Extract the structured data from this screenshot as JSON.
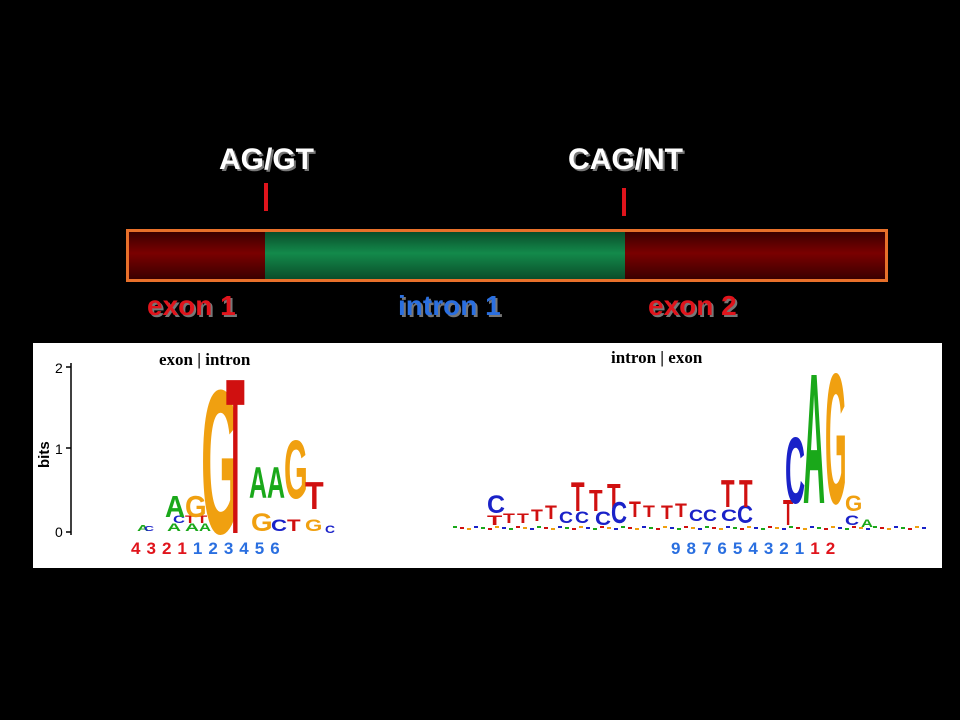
{
  "top_labels": {
    "donor": "AG/GT",
    "acceptor": "CAG/NT"
  },
  "regions": {
    "exon1": "exon 1",
    "intron1": "intron 1",
    "exon2": "exon 2"
  },
  "logo": {
    "left_title": "exon | intron",
    "right_title": "intron | exon",
    "y_axis_label": "bits",
    "y_ticks": [
      "2",
      "1",
      "0"
    ],
    "left_positions": [
      {
        "n": "4",
        "side": "exon"
      },
      {
        "n": "3",
        "side": "exon"
      },
      {
        "n": "2",
        "side": "exon"
      },
      {
        "n": "1",
        "side": "exon"
      },
      {
        "n": "1",
        "side": "intron"
      },
      {
        "n": "2",
        "side": "intron"
      },
      {
        "n": "3",
        "side": "intron"
      },
      {
        "n": "4",
        "side": "intron"
      },
      {
        "n": "5",
        "side": "intron"
      },
      {
        "n": "6",
        "side": "intron"
      }
    ],
    "right_positions": [
      {
        "n": "9",
        "side": "intron"
      },
      {
        "n": "8",
        "side": "intron"
      },
      {
        "n": "7",
        "side": "intron"
      },
      {
        "n": "6",
        "side": "intron"
      },
      {
        "n": "5",
        "side": "intron"
      },
      {
        "n": "4",
        "side": "intron"
      },
      {
        "n": "3",
        "side": "intron"
      },
      {
        "n": "2",
        "side": "intron"
      },
      {
        "n": "1",
        "side": "intron"
      },
      {
        "n": "1",
        "side": "exon"
      },
      {
        "n": "2",
        "side": "exon"
      }
    ]
  },
  "colors": {
    "exon_label": "#e0141c",
    "intron_label": "#2a6fe0",
    "exon_num": "#e0141c",
    "intron_num": "#2a6fe0",
    "A": "#1aa81a",
    "C": "#1a22c8",
    "G": "#f0a010",
    "T": "#d01010"
  }
}
